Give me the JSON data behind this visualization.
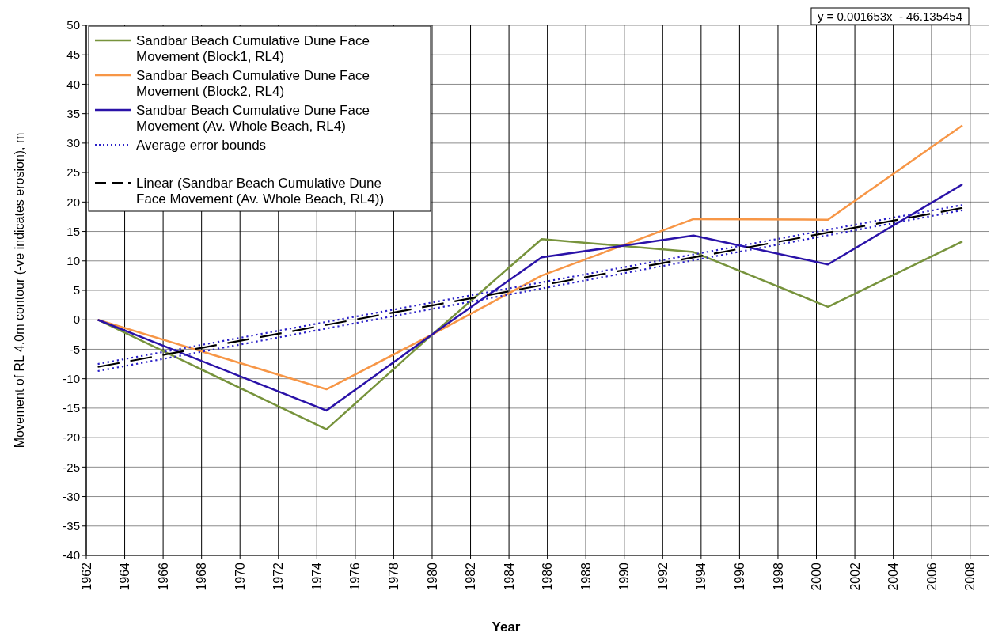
{
  "chart_data": {
    "type": "line",
    "xlabel": "Year",
    "ylabel": "Movement of RL 4.0m contour (-ve indicates erosion), m",
    "annotations": [
      "y = 0.001653x  - 46.135454"
    ],
    "series": [
      {
        "name": "Sandbar Beach Cumulative Dune Face Movement (Block1, RL4)",
        "color": "#77933c",
        "x": [
          1962.6,
          1974.5,
          1980,
          1985.7,
          1993.6,
          2000.6,
          2007.6
        ],
        "values": [
          0,
          -18.6,
          -2.5,
          13.7,
          11.5,
          2.2,
          13.3
        ]
      },
      {
        "name": "Sandbar Beach Cumulative Dune Face Movement (Block2, RL4)",
        "color": "#f79646",
        "x": [
          1962.6,
          1974.5,
          1980,
          1985.7,
          1993.6,
          2000.6,
          2007.6
        ],
        "values": [
          0,
          -11.8,
          -2.5,
          7.5,
          17.1,
          17,
          33
        ]
      },
      {
        "name": "Sandbar Beach Cumulative Dune Face Movement (Av. Whole Beach, RL4)",
        "color": "#2a12a8",
        "x": [
          1962.6,
          1974.5,
          1980,
          1985.7,
          1993.6,
          2000.6,
          2007.6
        ],
        "values": [
          0,
          -15.4,
          -2.5,
          10.6,
          14.3,
          9.4,
          23
        ]
      },
      {
        "name": "Average error bounds",
        "color": "#2a20c8",
        "line_style": "dotted",
        "x": [
          1962.6,
          2007.6
        ],
        "values": [
          -7.5,
          19.5
        ]
      },
      {
        "color": "#2a20c8",
        "line_style": "dotted",
        "x": [
          1962.6,
          2007.6
        ],
        "values": [
          -8.7,
          18.6
        ]
      },
      {
        "name": "Linear (Sandbar Beach Cumulative Dune Face Movement (Av. Whole Beach, RL4))",
        "color": "#000000",
        "line_style": "dashed",
        "x": [
          1962.6,
          2007.6
        ],
        "values": [
          -8,
          19
        ]
      }
    ],
    "xlim": [
      1962,
      2009
    ],
    "xticks": [
      1962,
      1964,
      1966,
      1968,
      1970,
      1972,
      1974,
      1976,
      1978,
      1980,
      1982,
      1984,
      1986,
      1988,
      1990,
      1992,
      1994,
      1996,
      1998,
      2000,
      2002,
      2004,
      2006,
      2008
    ],
    "ylim": [
      -40,
      50
    ],
    "yticks": [
      -40,
      -35,
      -30,
      -25,
      -20,
      -15,
      -10,
      -5,
      0,
      5,
      10,
      15,
      20,
      25,
      30,
      35,
      40,
      45,
      50
    ],
    "grid": true,
    "legend": "top left",
    "marker": "none",
    "line_style": "solid"
  }
}
